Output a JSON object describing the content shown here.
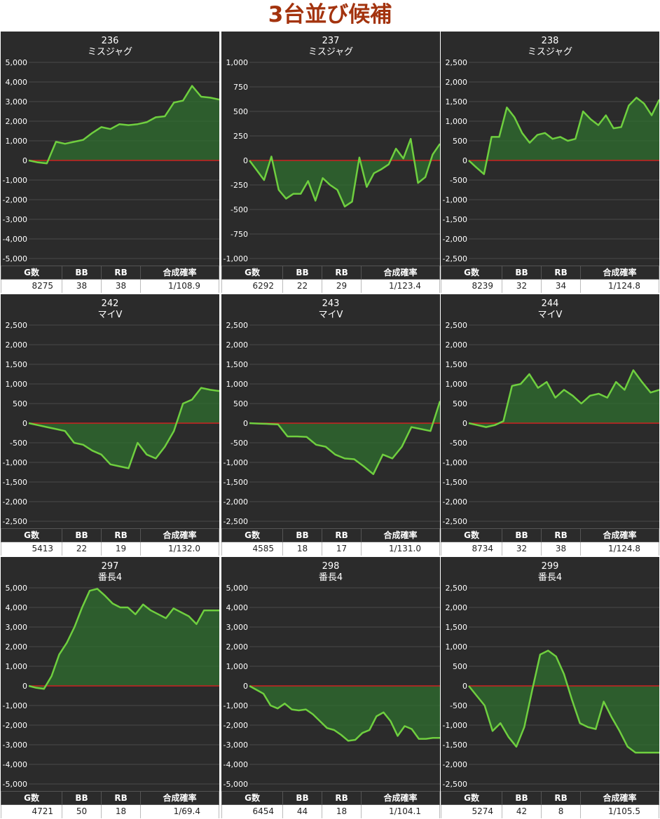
{
  "page": {
    "title": "3台並び候補"
  },
  "stat_headers": [
    "G数",
    "BB",
    "RB",
    "合成確率"
  ],
  "colors": {
    "line": "#6fcf3f",
    "fill": "#2f6f2f",
    "zero": "#cc2222",
    "bg": "#2b2b2b",
    "grid": "#4a4a4a",
    "title": "#a3330e"
  },
  "chart_data": [
    {
      "type": "area",
      "machine": "236",
      "name": "ミスジャグ",
      "ylim": [
        -5000,
        5000
      ],
      "yticks": [
        5000,
        4000,
        3000,
        2000,
        1000,
        0,
        -1000,
        -2000,
        -3000,
        -4000,
        -5000
      ],
      "tick_labels": [
        "5,000",
        "4,000",
        "3,000",
        "2,000",
        "1,000",
        "0",
        "-1,000",
        "-2,000",
        "-3,000",
        "-4,000",
        "-5,000"
      ],
      "values": [
        0,
        -100,
        -150,
        950,
        850,
        950,
        1050,
        1400,
        1700,
        1600,
        1850,
        1800,
        1850,
        1950,
        2200,
        2250,
        2950,
        3050,
        3800,
        3250,
        3200,
        3100
      ],
      "stats": {
        "games": "8275",
        "bb": "38",
        "rb": "38",
        "prob": "1/108.9"
      }
    },
    {
      "type": "area",
      "machine": "237",
      "name": "ミスジャグ",
      "ylim": [
        -1000,
        1000
      ],
      "yticks": [
        1000,
        750,
        500,
        250,
        0,
        -250,
        -500,
        -750,
        -1000
      ],
      "tick_labels": [
        "1,000",
        "750",
        "500",
        "250",
        "0",
        "-250",
        "-500",
        "-750",
        "-1,000"
      ],
      "values": [
        0,
        -100,
        -200,
        40,
        -300,
        -390,
        -340,
        -340,
        -210,
        -410,
        -180,
        -250,
        -300,
        -470,
        -420,
        30,
        -270,
        -130,
        -90,
        -40,
        120,
        20,
        220,
        -230,
        -170,
        60,
        170
      ],
      "stats": {
        "games": "6292",
        "bb": "22",
        "rb": "29",
        "prob": "1/123.4"
      }
    },
    {
      "type": "area",
      "machine": "238",
      "name": "ミスジャグ",
      "ylim": [
        -2500,
        2500
      ],
      "yticks": [
        2500,
        2000,
        1500,
        1000,
        500,
        0,
        -500,
        -1000,
        -1500,
        -2000,
        -2500
      ],
      "tick_labels": [
        "2,500",
        "2,000",
        "1,500",
        "1,000",
        "500",
        "0",
        "-500",
        "-1,000",
        "-1,500",
        "-2,000",
        "-2,500"
      ],
      "values": [
        0,
        -180,
        -350,
        600,
        600,
        1350,
        1100,
        700,
        450,
        650,
        700,
        550,
        600,
        500,
        550,
        1250,
        1050,
        900,
        1150,
        820,
        850,
        1400,
        1600,
        1450,
        1150,
        1550
      ],
      "stats": {
        "games": "8239",
        "bb": "32",
        "rb": "34",
        "prob": "1/124.8"
      }
    },
    {
      "type": "area",
      "machine": "242",
      "name": "マイV",
      "ylim": [
        -2500,
        2500
      ],
      "yticks": [
        2500,
        2000,
        1500,
        1000,
        500,
        0,
        -500,
        -1000,
        -1500,
        -2000,
        -2500
      ],
      "tick_labels": [
        "2,500",
        "2,000",
        "1,500",
        "1,000",
        "500",
        "0",
        "-500",
        "-1,000",
        "-1,500",
        "-2,000",
        "-2,500"
      ],
      "values": [
        0,
        -50,
        -100,
        -150,
        -200,
        -500,
        -550,
        -700,
        -800,
        -1050,
        -1100,
        -1150,
        -500,
        -800,
        -900,
        -600,
        -200,
        500,
        600,
        900,
        850,
        820
      ],
      "stats": {
        "games": "5413",
        "bb": "22",
        "rb": "19",
        "prob": "1/132.0"
      }
    },
    {
      "type": "area",
      "machine": "243",
      "name": "マイV",
      "ylim": [
        -2500,
        2500
      ],
      "yticks": [
        2500,
        2000,
        1500,
        1000,
        500,
        0,
        -500,
        -1000,
        -1500,
        -2000,
        -2500
      ],
      "tick_labels": [
        "2,500",
        "2,000",
        "1,500",
        "1,000",
        "500",
        "0",
        "-500",
        "-1,000",
        "-1,500",
        "-2,000",
        "-2,500"
      ],
      "values": [
        0,
        -10,
        -20,
        -30,
        -340,
        -340,
        -350,
        -550,
        -600,
        -800,
        -900,
        -920,
        -1100,
        -1300,
        -800,
        -900,
        -600,
        -100,
        -150,
        -200,
        560
      ],
      "stats": {
        "games": "4585",
        "bb": "18",
        "rb": "17",
        "prob": "1/131.0"
      }
    },
    {
      "type": "area",
      "machine": "244",
      "name": "マイV",
      "ylim": [
        -2500,
        2500
      ],
      "yticks": [
        2500,
        2000,
        1500,
        1000,
        500,
        0,
        -500,
        -1000,
        -1500,
        -2000,
        -2500
      ],
      "tick_labels": [
        "2,500",
        "2,000",
        "1,500",
        "1,000",
        "500",
        "0",
        "-500",
        "-1,000",
        "-1,500",
        "-2,000",
        "-2,500"
      ],
      "values": [
        0,
        -50,
        -100,
        -50,
        50,
        950,
        1000,
        1250,
        900,
        1050,
        650,
        850,
        700,
        500,
        700,
        750,
        650,
        1050,
        850,
        1350,
        1050,
        780,
        850
      ],
      "stats": {
        "games": "8734",
        "bb": "32",
        "rb": "38",
        "prob": "1/124.8"
      }
    },
    {
      "type": "area",
      "machine": "297",
      "name": "番長4",
      "ylim": [
        -5000,
        5000
      ],
      "yticks": [
        5000,
        4000,
        3000,
        2000,
        1000,
        0,
        -1000,
        -2000,
        -3000,
        -4000,
        -5000
      ],
      "tick_labels": [
        "5,000",
        "4,000",
        "3,000",
        "2,000",
        "1,000",
        "0",
        "-1,000",
        "-2,000",
        "-3,000",
        "-4,000",
        "-5,000"
      ],
      "values": [
        0,
        -100,
        -150,
        500,
        1600,
        2200,
        3000,
        4000,
        4850,
        4950,
        4600,
        4200,
        4000,
        4000,
        3650,
        4150,
        3850,
        3650,
        3450,
        3950,
        3750,
        3550,
        3150,
        3850,
        3850,
        3850
      ],
      "stats": {
        "games": "4721",
        "bb": "50",
        "rb": "18",
        "prob": "1/69.4"
      }
    },
    {
      "type": "area",
      "machine": "298",
      "name": "番長4",
      "ylim": [
        -5000,
        5000
      ],
      "yticks": [
        5000,
        4000,
        3000,
        2000,
        1000,
        0,
        -1000,
        -2000,
        -3000,
        -4000,
        -5000
      ],
      "tick_labels": [
        "5,000",
        "4,000",
        "3,000",
        "2,000",
        "1,000",
        "0",
        "-1,000",
        "-2,000",
        "-3,000",
        "-4,000",
        "-5,000"
      ],
      "values": [
        0,
        -200,
        -400,
        -1000,
        -1150,
        -900,
        -1200,
        -1250,
        -1200,
        -1450,
        -1800,
        -2150,
        -2250,
        -2500,
        -2800,
        -2750,
        -2400,
        -2250,
        -1550,
        -1350,
        -1800,
        -2550,
        -2050,
        -2200,
        -2700,
        -2700,
        -2650,
        -2650
      ],
      "stats": {
        "games": "6454",
        "bb": "44",
        "rb": "18",
        "prob": "1/104.1"
      }
    },
    {
      "type": "area",
      "machine": "299",
      "name": "番長4",
      "ylim": [
        -2500,
        2500
      ],
      "yticks": [
        2500,
        2000,
        1500,
        1000,
        500,
        0,
        -500,
        -1000,
        -1500,
        -2000,
        -2500
      ],
      "tick_labels": [
        "2,500",
        "2,000",
        "1,500",
        "1,000",
        "500",
        "0",
        "-500",
        "-1,000",
        "-1,500",
        "-2,000",
        "-2,500"
      ],
      "values": [
        0,
        -250,
        -500,
        -1150,
        -950,
        -1300,
        -1550,
        -1050,
        -100,
        800,
        900,
        750,
        300,
        -350,
        -950,
        -1050,
        -1100,
        -400,
        -800,
        -1150,
        -1550,
        -1700,
        -1700,
        -1700,
        -1700
      ],
      "stats": {
        "games": "5274",
        "bb": "42",
        "rb": "8",
        "prob": "1/105.5"
      }
    }
  ]
}
